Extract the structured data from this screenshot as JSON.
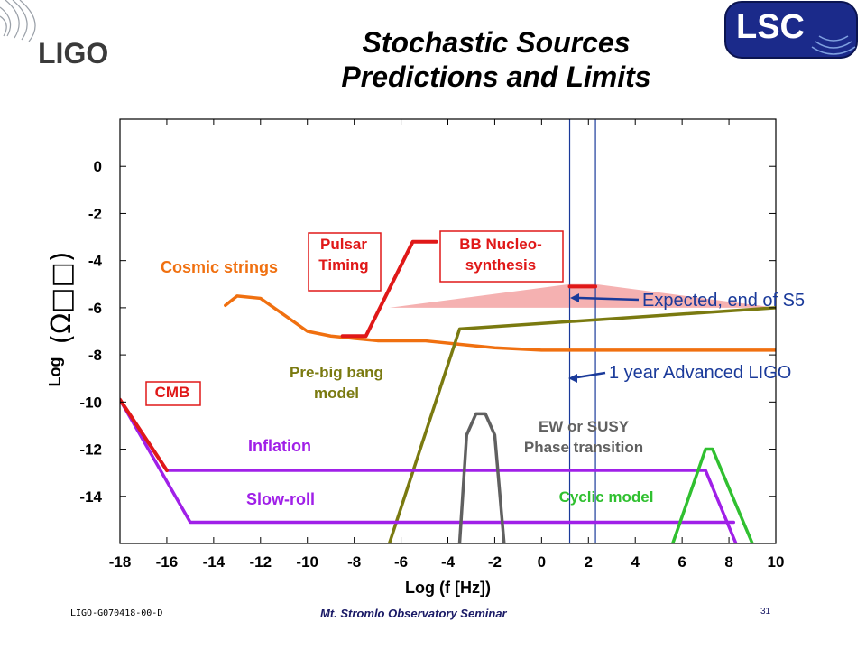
{
  "slide": {
    "title_line1": "Stochastic Sources",
    "title_line2": "Predictions and Limits",
    "logo_left_text": "LIGO",
    "logo_right_text": "LSC",
    "footer_left": "LIGO-G070418-00-D",
    "footer_center": "Mt. Stromlo Observatory Seminar",
    "footer_right": "31"
  },
  "colors": {
    "orange": "#f07010",
    "red": "#e01818",
    "olive": "#7a7a10",
    "purple": "#a020e8",
    "gray": "#606060",
    "green": "#30c030",
    "blue": "#1a3a9a",
    "pink": "#f4a8a8",
    "axis": "#000000"
  },
  "chart_data": {
    "type": "line",
    "xlabel": "Log (f [Hz])",
    "ylabel": "Log",
    "ylabel_symbol": "(Ω□□)",
    "xlim": [
      -18,
      10
    ],
    "ylim": [
      -16,
      2
    ],
    "xticks": [
      -18,
      -16,
      -14,
      -12,
      -10,
      -8,
      -6,
      -4,
      -2,
      0,
      2,
      4,
      6,
      8,
      10
    ],
    "yticks": [
      0,
      -2,
      -4,
      -6,
      -8,
      -10,
      -12,
      -14
    ],
    "grid": false,
    "series": [
      {
        "name": "Cosmic strings",
        "color_key": "orange",
        "x": [
          -13.5,
          -13,
          -12,
          -11,
          -10,
          -9,
          -8,
          -7,
          -6,
          -5,
          -4,
          -2,
          0,
          2,
          4,
          6,
          8,
          10
        ],
        "y": [
          -5.9,
          -5.5,
          -5.6,
          -6.3,
          -7.0,
          -7.2,
          -7.3,
          -7.4,
          -7.4,
          -7.4,
          -7.5,
          -7.7,
          -7.8,
          -7.8,
          -7.8,
          -7.8,
          -7.8,
          -7.8
        ]
      },
      {
        "name": "Pre-big bang model",
        "color_key": "olive",
        "x": [
          -6.5,
          -3.5,
          10
        ],
        "y": [
          -16,
          -6.9,
          -6.0
        ]
      },
      {
        "name": "Inflation",
        "color_key": "purple",
        "x": [
          -18,
          -16,
          7,
          8.3
        ],
        "y": [
          -9.9,
          -12.9,
          -12.9,
          -16
        ]
      },
      {
        "name": "Slow-roll",
        "color_key": "purple",
        "x": [
          -18,
          -15,
          8.2
        ],
        "y": [
          -9.9,
          -15.1,
          -15.1
        ]
      },
      {
        "name": "EW or SUSY Phase transition",
        "color_key": "gray",
        "x": [
          -3.5,
          -3.2,
          -2.8,
          -2.4,
          -2.0,
          -1.6
        ],
        "y": [
          -16,
          -11.4,
          -10.5,
          -10.5,
          -11.4,
          -16
        ]
      },
      {
        "name": "Cyclic model",
        "color_key": "green",
        "x": [
          5.6,
          7.0,
          7.3,
          9.0
        ],
        "y": [
          -16,
          -12.0,
          -12.0,
          -16
        ]
      }
    ],
    "limits": [
      {
        "name": "CMB",
        "color_key": "red",
        "x": [
          -18,
          -16
        ],
        "y": [
          -9.9,
          -12.9
        ]
      },
      {
        "name": "Pulsar Timing",
        "color_key": "red",
        "x": [
          -8.5,
          -7.5,
          -5.5,
          -4.5
        ],
        "y": [
          -7.2,
          -7.2,
          -3.2,
          -3.2
        ]
      },
      {
        "name": "BB Nucleo-synthesis",
        "color_key": "red",
        "x": [
          1.2,
          2.3
        ],
        "y": [
          -5.1,
          -5.1
        ]
      }
    ],
    "bands": [
      {
        "name": "Expected, end of S5",
        "color_key": "pink",
        "x": [
          -6.5,
          1.2,
          2.3,
          10
        ],
        "y": [
          -6.0,
          -5.0,
          -5.0,
          -6.0
        ]
      }
    ],
    "vertical_lines": [
      {
        "color_key": "blue",
        "x": 1.2
      },
      {
        "color_key": "blue",
        "x": 2.3
      }
    ],
    "annotations": [
      {
        "text": "Cosmic strings",
        "color_key": "orange",
        "boxed": false
      },
      {
        "text": "Pulsar\nTiming",
        "color_key": "red",
        "boxed": true
      },
      {
        "text": "BB Nucleo-\nsynthesis",
        "color_key": "red",
        "boxed": true
      },
      {
        "text": "CMB",
        "color_key": "red",
        "boxed": true
      },
      {
        "text": "Pre-big bang\nmodel",
        "color_key": "olive",
        "boxed": false
      },
      {
        "text": "Inflation",
        "color_key": "purple",
        "boxed": false
      },
      {
        "text": "Slow-roll",
        "color_key": "purple",
        "boxed": false
      },
      {
        "text": "EW or SUSY\nPhase transition",
        "color_key": "gray",
        "boxed": false
      },
      {
        "text": "Cyclic model",
        "color_key": "green",
        "boxed": false
      },
      {
        "text": "Expected, end of S5",
        "color_key": "blue",
        "boxed": false
      },
      {
        "text": "1 year Advanced LIGO",
        "color_key": "blue",
        "boxed": false
      }
    ]
  }
}
